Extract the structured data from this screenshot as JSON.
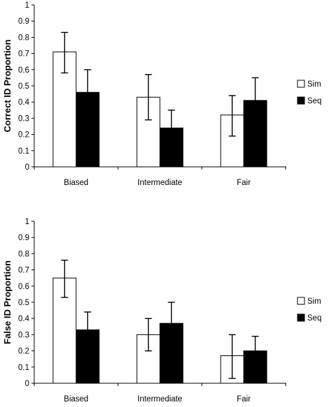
{
  "chart_data": [
    {
      "type": "bar",
      "title": "",
      "xlabel": "",
      "ylabel": "Correct ID Proportion",
      "ylim": [
        0,
        1
      ],
      "yticks": [
        "0",
        "0.1",
        "0.2",
        "0.3",
        "0.4",
        "0.5",
        "0.6",
        "0.7",
        "0.8",
        "0.9",
        "1"
      ],
      "categories": [
        "Biased",
        "Intermediate",
        "Fair"
      ],
      "series": [
        {
          "name": "Sim",
          "color": "#ffffff",
          "values": [
            0.71,
            0.43,
            0.32
          ],
          "err_low": [
            0.58,
            0.29,
            0.19
          ],
          "err_high": [
            0.83,
            0.57,
            0.44
          ]
        },
        {
          "name": "Seq",
          "color": "#000000",
          "values": [
            0.46,
            0.24,
            0.41
          ],
          "err_low": [
            0.33,
            0.12,
            0.28
          ],
          "err_high": [
            0.6,
            0.35,
            0.55
          ]
        }
      ],
      "legend_position": "right",
      "grid": false
    },
    {
      "type": "bar",
      "title": "",
      "xlabel": "",
      "ylabel": "False ID Proportion",
      "ylim": [
        0,
        1
      ],
      "yticks": [
        "0",
        "0.1",
        "0.2",
        "0.3",
        "0.4",
        "0.5",
        "0.6",
        "0.7",
        "0.8",
        "0.9",
        "1"
      ],
      "categories": [
        "Biased",
        "Intermediate",
        "Fair"
      ],
      "series": [
        {
          "name": "Sim",
          "color": "#ffffff",
          "values": [
            0.65,
            0.3,
            0.17
          ],
          "err_low": [
            0.53,
            0.2,
            0.03
          ],
          "err_high": [
            0.76,
            0.4,
            0.3
          ]
        },
        {
          "name": "Seq",
          "color": "#000000",
          "values": [
            0.33,
            0.37,
            0.2
          ],
          "err_low": [
            0.21,
            0.25,
            0.11
          ],
          "err_high": [
            0.44,
            0.5,
            0.29
          ]
        }
      ],
      "legend_position": "right",
      "grid": false
    }
  ]
}
